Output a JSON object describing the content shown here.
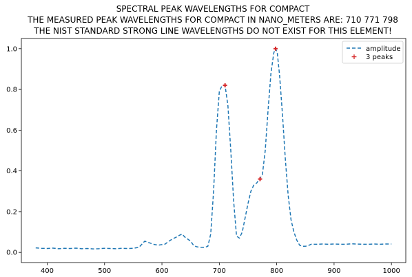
{
  "chart_data": {
    "type": "line",
    "title_lines": [
      "SPECTRAL PEAK WAVELENGTHS FOR COMPACT",
      "THE MEASURED PEAK WAVELENGTHS FOR COMPACT IN NANO_METERS ARE: 710 771 798",
      "THE NIST STANDARD STRONG LINE WAVELENGTHS DO NOT EXIST FOR THIS ELEMENT!"
    ],
    "xlabel": "",
    "ylabel": "",
    "xlim": [
      355,
      1025
    ],
    "ylim": [
      -0.05,
      1.05
    ],
    "x_ticks": [
      400,
      500,
      600,
      700,
      800,
      900,
      1000
    ],
    "y_ticks": [
      0.0,
      0.2,
      0.4,
      0.6,
      0.8,
      1.0
    ],
    "grid": false,
    "legend_position": "top-right",
    "series": [
      {
        "name": "amplitude",
        "style": "dashed-line",
        "color": "#1f77b4",
        "x": [
          380,
          390,
          400,
          410,
          420,
          430,
          440,
          450,
          460,
          470,
          480,
          490,
          500,
          510,
          520,
          530,
          540,
          550,
          560,
          565,
          570,
          575,
          580,
          585,
          590,
          595,
          600,
          605,
          610,
          615,
          620,
          625,
          630,
          635,
          640,
          645,
          650,
          655,
          660,
          665,
          670,
          675,
          680,
          685,
          690,
          695,
          700,
          705,
          710,
          715,
          720,
          725,
          730,
          735,
          740,
          745,
          750,
          755,
          760,
          765,
          770,
          775,
          780,
          785,
          790,
          795,
          798,
          801,
          805,
          810,
          815,
          820,
          825,
          830,
          835,
          840,
          845,
          850,
          855,
          860,
          870,
          880,
          890,
          900,
          910,
          920,
          930,
          940,
          950,
          960,
          970,
          980,
          990,
          1000
        ],
        "y": [
          0.022,
          0.02,
          0.019,
          0.021,
          0.018,
          0.02,
          0.019,
          0.021,
          0.018,
          0.019,
          0.017,
          0.018,
          0.02,
          0.019,
          0.018,
          0.02,
          0.019,
          0.02,
          0.025,
          0.04,
          0.055,
          0.05,
          0.045,
          0.04,
          0.037,
          0.036,
          0.038,
          0.04,
          0.05,
          0.06,
          0.068,
          0.075,
          0.083,
          0.09,
          0.075,
          0.065,
          0.055,
          0.035,
          0.028,
          0.025,
          0.025,
          0.025,
          0.03,
          0.09,
          0.3,
          0.6,
          0.79,
          0.82,
          0.82,
          0.72,
          0.5,
          0.25,
          0.08,
          0.07,
          0.1,
          0.17,
          0.24,
          0.3,
          0.33,
          0.34,
          0.36,
          0.38,
          0.5,
          0.7,
          0.88,
          0.98,
          1.0,
          0.98,
          0.87,
          0.68,
          0.46,
          0.28,
          0.16,
          0.1,
          0.06,
          0.035,
          0.03,
          0.03,
          0.033,
          0.04,
          0.04,
          0.041,
          0.04,
          0.041,
          0.04,
          0.04,
          0.042,
          0.041,
          0.04,
          0.04,
          0.041,
          0.04,
          0.041,
          0.041
        ]
      },
      {
        "name": "3 peaks",
        "style": "markers",
        "color": "#d62728",
        "x": [
          710,
          771,
          798
        ],
        "y": [
          0.82,
          0.36,
          1.0
        ]
      }
    ]
  }
}
